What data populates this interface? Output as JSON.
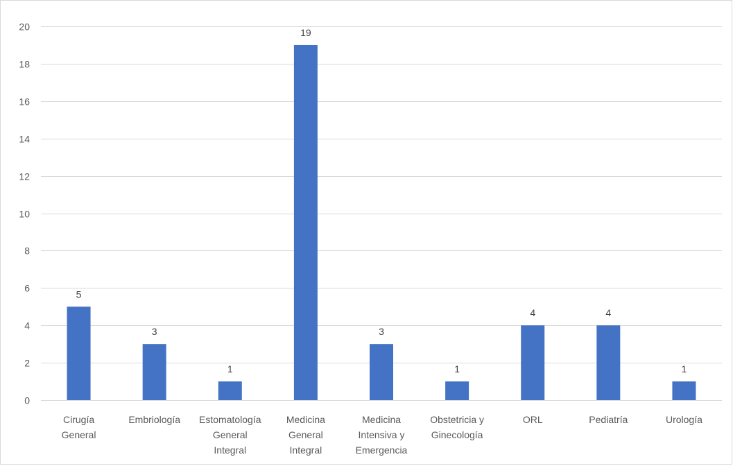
{
  "chart_data": {
    "type": "bar",
    "title": "",
    "xlabel": "",
    "ylabel": "",
    "categories": [
      [
        "Cirugía",
        "General"
      ],
      [
        "Embriología"
      ],
      [
        "Estomatología",
        "General",
        "Integral"
      ],
      [
        "Medicina",
        "General",
        "Integral"
      ],
      [
        "Medicina",
        "Intensiva y",
        "Emergencia"
      ],
      [
        "Obstetricia y",
        "Ginecología"
      ],
      [
        "ORL"
      ],
      [
        "Pediatría"
      ],
      [
        "Urología"
      ]
    ],
    "values": [
      5,
      3,
      1,
      19,
      3,
      1,
      4,
      4,
      1
    ],
    "ylim": [
      0,
      20
    ],
    "yticks": [
      0,
      2,
      4,
      6,
      8,
      10,
      12,
      14,
      16,
      18,
      20
    ],
    "grid": true,
    "legend": "none",
    "data_labels": true,
    "bar_color": "#4472c4"
  }
}
